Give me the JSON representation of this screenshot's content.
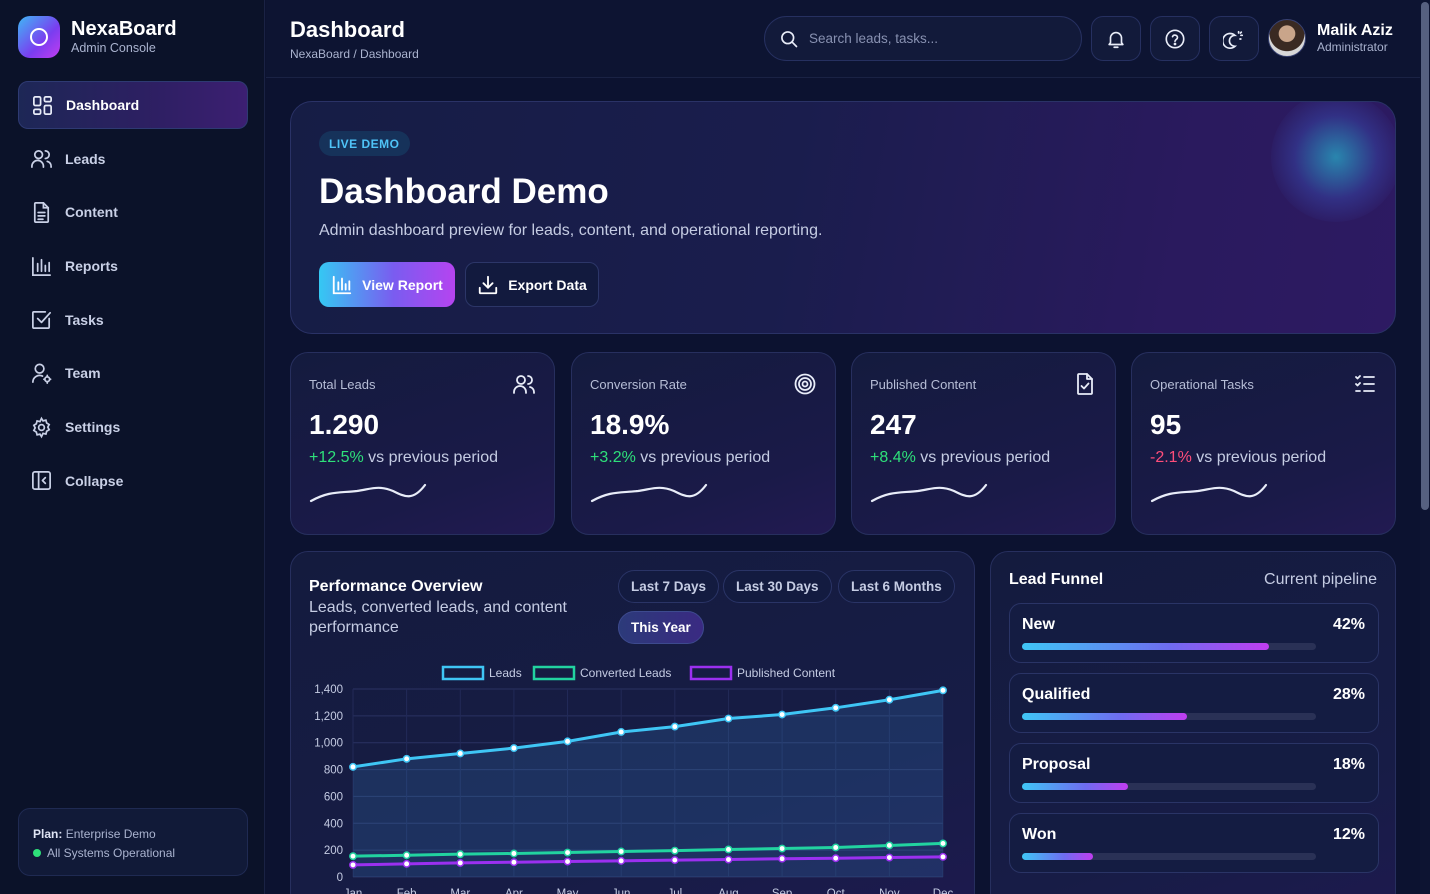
{
  "brand": {
    "name": "NexaBoard",
    "subtitle": "Admin Console"
  },
  "sidebar": {
    "items": [
      {
        "label": "Dashboard",
        "icon": "grid-icon",
        "active": true
      },
      {
        "label": "Leads",
        "icon": "users-icon"
      },
      {
        "label": "Content",
        "icon": "document-icon"
      },
      {
        "label": "Reports",
        "icon": "bar-chart-icon"
      },
      {
        "label": "Tasks",
        "icon": "checkbox-icon"
      },
      {
        "label": "Team",
        "icon": "user-gear-icon"
      },
      {
        "label": "Settings",
        "icon": "gear-icon"
      },
      {
        "label": "Collapse",
        "icon": "sidebar-collapse-icon"
      }
    ],
    "plan_label": "Plan:",
    "plan_value": "Enterprise Demo",
    "status": "All Systems Operational",
    "status_color": "#2ee07a"
  },
  "header": {
    "title": "Dashboard",
    "breadcrumb": "NexaBoard / Dashboard",
    "search_placeholder": "Search leads, tasks...",
    "user": {
      "name": "Malik Aziz",
      "role": "Administrator"
    }
  },
  "hero": {
    "badge": "LIVE DEMO",
    "title": "Dashboard Demo",
    "subtitle": "Admin dashboard preview for leads, content, and operational reporting.",
    "primary_button": "View Report",
    "secondary_button": "Export Data"
  },
  "stats": [
    {
      "label": "Total Leads",
      "value": "1.290",
      "change": "+12.5%",
      "trend": "up",
      "suffix": "vs previous period",
      "icon": "users-icon"
    },
    {
      "label": "Conversion Rate",
      "value": "18.9%",
      "change": "+3.2%",
      "trend": "up",
      "suffix": "vs previous period",
      "icon": "target-icon"
    },
    {
      "label": "Published Content",
      "value": "247",
      "change": "+8.4%",
      "trend": "up",
      "suffix": "vs previous period",
      "icon": "file-check-icon"
    },
    {
      "label": "Operational Tasks",
      "value": "95",
      "change": "-2.1%",
      "trend": "down",
      "suffix": "vs previous period",
      "icon": "checklist-icon"
    }
  ],
  "performance": {
    "title": "Performance Overview",
    "subtitle": "Leads, converted leads, and content performance",
    "ranges": [
      "Last 7 Days",
      "Last 30 Days",
      "Last 6 Months",
      "This Year"
    ],
    "active_range": "This Year"
  },
  "chart_data": {
    "type": "line",
    "categories": [
      "Jan",
      "Feb",
      "Mar",
      "Apr",
      "May",
      "Jun",
      "Jul",
      "Aug",
      "Sep",
      "Oct",
      "Nov",
      "Dec"
    ],
    "series": [
      {
        "name": "Leads",
        "color": "#3fc6f5",
        "values": [
          820,
          880,
          920,
          960,
          1010,
          1080,
          1120,
          1180,
          1210,
          1260,
          1320,
          1390
        ]
      },
      {
        "name": "Converted Leads",
        "color": "#22d3a0",
        "values": [
          155,
          162,
          170,
          175,
          182,
          190,
          196,
          205,
          212,
          220,
          235,
          250
        ]
      },
      {
        "name": "Published Content",
        "color": "#9b30f0",
        "values": [
          90,
          98,
          105,
          110,
          115,
          120,
          126,
          130,
          136,
          140,
          145,
          150
        ]
      }
    ],
    "ylim": [
      0,
      1400
    ],
    "yticks": [
      "1,400",
      "1,200",
      "1,000",
      "800",
      "600",
      "400",
      "200",
      "0"
    ],
    "legend_position": "top",
    "grid": true,
    "area_fill": "Leads"
  },
  "funnel": {
    "title": "Lead Funnel",
    "subtitle": "Current pipeline",
    "stages": [
      {
        "name": "New",
        "pct": "42%",
        "fill": 0.84
      },
      {
        "name": "Qualified",
        "pct": "28%",
        "fill": 0.56
      },
      {
        "name": "Proposal",
        "pct": "18%",
        "fill": 0.36
      },
      {
        "name": "Won",
        "pct": "12%",
        "fill": 0.24
      }
    ]
  }
}
